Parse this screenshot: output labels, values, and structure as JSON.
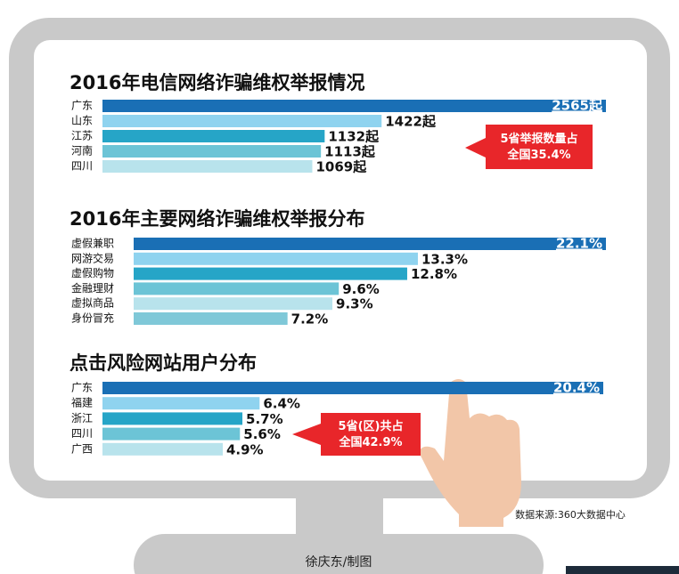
{
  "chart_data": [
    {
      "type": "hbar",
      "title": "2016年电信网络诈骗维权举报情况",
      "categories": [
        "广东",
        "山东",
        "江苏",
        "河南",
        "四川"
      ],
      "values": [
        2565,
        1422,
        1132,
        1113,
        1069
      ],
      "value_labels": [
        "2565起",
        "1422起",
        "1132起",
        "1113起",
        "1069起"
      ],
      "colors": [
        "#1a6fb5",
        "#8fd3ef",
        "#26a5c7",
        "#6cc4d6",
        "#b8e3ec"
      ],
      "annotation": "5省举报数量占全国35.4%"
    },
    {
      "type": "hbar",
      "title": "2016年主要网络诈骗维权举报分布",
      "categories": [
        "虚假兼职",
        "网游交易",
        "虚假购物",
        "金融理财",
        "虚拟商品",
        "身份冒充"
      ],
      "values": [
        22.1,
        13.3,
        12.8,
        9.6,
        9.3,
        7.2
      ],
      "value_labels": [
        "22.1%",
        "13.3%",
        "12.8%",
        "9.6%",
        "9.3%",
        "7.2%"
      ],
      "colors": [
        "#1a6fb5",
        "#8fd3ef",
        "#26a5c7",
        "#6cc4d6",
        "#b8e3ec",
        "#7fc8d8"
      ]
    },
    {
      "type": "hbar",
      "title": "点击风险网站用户分布",
      "categories": [
        "广东",
        "福建",
        "浙江",
        "四川",
        "广西"
      ],
      "values": [
        20.4,
        6.4,
        5.7,
        5.6,
        4.9
      ],
      "value_labels": [
        "20.4%",
        "6.4%",
        "5.7%",
        "5.6%",
        "4.9%"
      ],
      "colors": [
        "#1a6fb5",
        "#8fd3ef",
        "#26a5c7",
        "#6cc4d6",
        "#b8e3ec"
      ],
      "annotation": "5省(区)共占全国42.9%"
    }
  ],
  "source": "数据来源:360大数据中心",
  "credit": "徐庆东/制图"
}
